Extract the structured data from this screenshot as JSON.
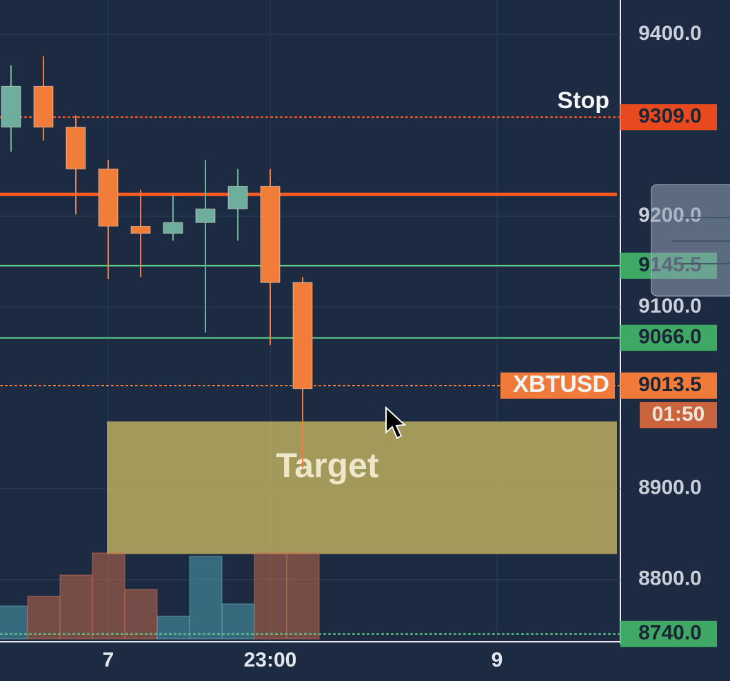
{
  "chart_data": {
    "type": "candlestick",
    "categories": [
      null,
      null,
      null,
      "7",
      null,
      null,
      null,
      null,
      "23:00",
      null,
      null,
      null,
      null,
      null,
      null,
      "9",
      null,
      null,
      null
    ],
    "open": [
      9298,
      9343,
      9298,
      9252,
      9189,
      9181,
      9193,
      9208,
      9233,
      9127,
      null,
      null,
      null,
      null,
      null,
      null,
      null,
      null,
      null
    ],
    "high": [
      9366,
      9376,
      9311,
      9262,
      9229,
      9223,
      9262,
      9252,
      9252,
      9133,
      null,
      null,
      null,
      null,
      null,
      null,
      null,
      null,
      null
    ],
    "low": [
      9271,
      9283,
      9202,
      9131,
      9133,
      9173,
      9072,
      9173,
      9058,
      8923,
      null,
      null,
      null,
      null,
      null,
      null,
      null,
      null,
      null
    ],
    "close": [
      9343,
      9298,
      9252,
      9189,
      9181,
      9193,
      9208,
      9233,
      9127,
      9010,
      null,
      null,
      null,
      null,
      null,
      null,
      null,
      null,
      null
    ],
    "volume": [
      48,
      62,
      93,
      125,
      72,
      33,
      120,
      51,
      125,
      125,
      null,
      null,
      null,
      null,
      null,
      null,
      null,
      null,
      null
    ],
    "up_color": "#6fae9c",
    "down_color": "#f27d3a",
    "ylim": [
      8733,
      9438
    ],
    "yticks": [
      {
        "value": 9400,
        "label": "9400.0"
      },
      {
        "value": 9200,
        "label": "9200.0"
      },
      {
        "value": 9100,
        "label": "9100.0"
      },
      {
        "value": 8900,
        "label": "8900.0"
      },
      {
        "value": 8800,
        "label": "8800.0"
      }
    ],
    "grid": true,
    "position_line": {
      "value": 9224,
      "color": "#ff5a1f"
    },
    "levels": [
      {
        "name": "Stop",
        "value": 9309,
        "label": "9309.0",
        "color": "#ff5a1f",
        "tag_color": "#e8491e",
        "style": "dashed"
      },
      {
        "value": 9145.5,
        "label": "9145.5",
        "color": "#5fd08a",
        "tag_color": "#3fa864",
        "style": "solid"
      },
      {
        "value": 9066,
        "label": "9066.0",
        "color": "#5fd08a",
        "tag_color": "#3fa864",
        "style": "solid"
      },
      {
        "name": "XBTUSD",
        "value": 9013.5,
        "label": "9013.5",
        "color": "#f27d3a",
        "tag_color": "#f07a3a",
        "style": "dashed"
      },
      {
        "value": 8740,
        "label": "8740.0",
        "color": "#5fd08a",
        "tag_color": "#3fa864",
        "style": "dashed"
      }
    ],
    "countdown": "01:50",
    "target": {
      "label": "Target",
      "high": 8974,
      "low": 8828,
      "start_index": 3,
      "color": "#c8b862"
    }
  }
}
